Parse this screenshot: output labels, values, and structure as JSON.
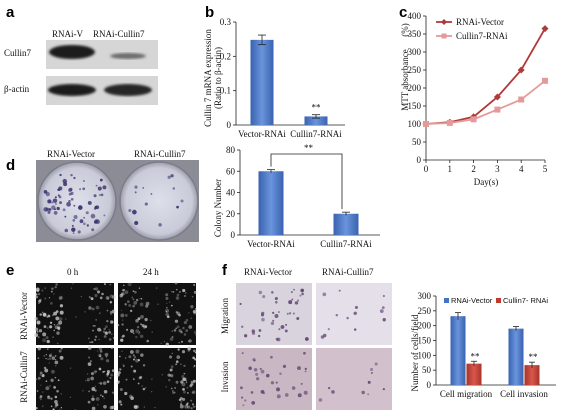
{
  "panels": {
    "a": {
      "label": "a",
      "lanes": [
        "RNAi-V",
        "RNAi-Cullin7"
      ],
      "rows": [
        "Cullin7",
        "β-actin"
      ]
    },
    "d_photo": {
      "label": "d",
      "lanes": [
        "RNAi-Vector",
        "RNAi-Cullin7"
      ]
    },
    "e": {
      "label": "e",
      "columns": [
        "0 h",
        "24 h"
      ],
      "rows": [
        "RNAi-Vector",
        "RNAi-Cullin7"
      ]
    },
    "f_photo": {
      "label": "f",
      "columns": [
        "RNAi-Vector",
        "RNAi-Cullin7"
      ],
      "rows": [
        "Migration",
        "Invasion"
      ]
    }
  },
  "chart_data": [
    {
      "id": "b",
      "label": "b",
      "type": "bar",
      "categories": [
        "Vector-RNAi",
        "Cullin7-RNAi"
      ],
      "values": [
        0.248,
        0.025
      ],
      "errors": [
        0.014,
        0.005
      ],
      "yticks": [
        "0",
        "0.1",
        "0.2",
        "0.3"
      ],
      "ylim": [
        0,
        0.3
      ],
      "ylabel": "Cullin 7 mRNA expression",
      "ylabel2": "(Ratio to β-actin)",
      "annotations": [
        {
          "category": "Cullin7-RNAi",
          "text": "**"
        }
      ],
      "color": "#4472c4"
    },
    {
      "id": "c",
      "label": "c",
      "type": "line",
      "x": [
        0,
        1,
        2,
        3,
        4,
        5
      ],
      "xticks": [
        "0",
        "1",
        "2",
        "3",
        "4",
        "5"
      ],
      "series": [
        {
          "name": "RNAi-Vector",
          "values": [
            100,
            105,
            120,
            175,
            250,
            365
          ],
          "color": "#b03a3a",
          "marker": "diamond"
        },
        {
          "name": "Cullin7-RNAi",
          "values": [
            100,
            103,
            113,
            140,
            168,
            220
          ],
          "color": "#e59a9a",
          "marker": "square"
        }
      ],
      "yticks": [
        "0",
        "50",
        "100",
        "150",
        "200",
        "250",
        "300",
        "350",
        "400"
      ],
      "ylim": [
        0,
        400
      ],
      "xlim": [
        0,
        5
      ],
      "ylabel": "MTT absorbance",
      "ylabel_unit": "(%)",
      "xlabel": "Day(s)",
      "legend": "top-left"
    },
    {
      "id": "d",
      "type": "bar",
      "categories": [
        "Vector-RNAi",
        "Cullin7-RNAi"
      ],
      "values": [
        60,
        20
      ],
      "errors": [
        1.5,
        1.5
      ],
      "yticks": [
        "0",
        "20",
        "40",
        "60",
        "80"
      ],
      "ylim": [
        0,
        80
      ],
      "ylabel": "Colony Number",
      "annotations": [
        {
          "text": "**",
          "bracket": true
        }
      ],
      "color": "#4472c4"
    },
    {
      "id": "f",
      "type": "bar",
      "categories": [
        "Cell migration",
        "Cell invasion"
      ],
      "series": [
        {
          "name": "RNAi-Vector",
          "values": [
            232,
            190
          ],
          "errors": [
            12,
            7
          ],
          "color": "#4472c4"
        },
        {
          "name": "Cullin7- RNAi",
          "values": [
            72,
            67
          ],
          "errors": [
            8,
            10
          ],
          "color": "#c0392b"
        }
      ],
      "yticks": [
        "0",
        "50",
        "100",
        "150",
        "200",
        "250",
        "300"
      ],
      "ylim": [
        0,
        300
      ],
      "ylabel": "Number of cells/field",
      "annotations": [
        {
          "series": "Cullin7- RNAi",
          "text": "**"
        }
      ],
      "legend": "top"
    }
  ]
}
